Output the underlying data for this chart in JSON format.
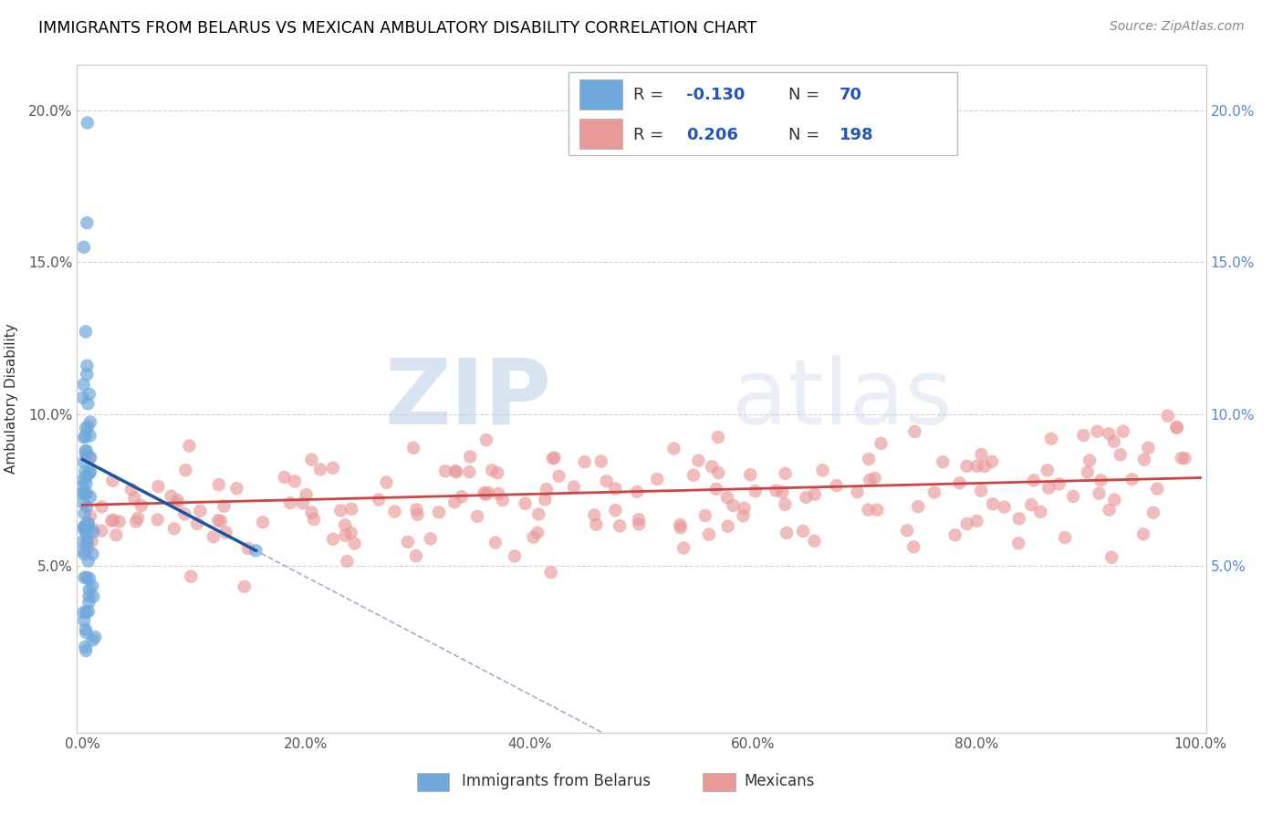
{
  "title": "IMMIGRANTS FROM BELARUS VS MEXICAN AMBULATORY DISABILITY CORRELATION CHART",
  "source": "Source: ZipAtlas.com",
  "ylabel": "Ambulatory Disability",
  "xlim": [
    -0.005,
    1.005
  ],
  "ylim": [
    -0.005,
    0.215
  ],
  "xticks": [
    0.0,
    0.2,
    0.4,
    0.6,
    0.8,
    1.0
  ],
  "yticks": [
    0.05,
    0.1,
    0.15,
    0.2
  ],
  "ytick_labels": [
    "5.0%",
    "10.0%",
    "15.0%",
    "20.0%"
  ],
  "xtick_labels": [
    "0.0%",
    "20.0%",
    "40.0%",
    "60.0%",
    "80.0%",
    "100.0%"
  ],
  "blue_R": -0.13,
  "blue_N": 70,
  "pink_R": 0.206,
  "pink_N": 198,
  "blue_color": "#6fa8dc",
  "pink_color": "#ea9999",
  "blue_line_color": "#1a56a0",
  "pink_line_color": "#cc4444",
  "dashed_line_color": "#aaaacc",
  "legend_label_blue": "Immigrants from Belarus",
  "legend_label_pink": "Mexicans",
  "watermark_zip": "ZIP",
  "watermark_atlas": "atlas",
  "background_color": "#ffffff",
  "grid_color": "#cccccc",
  "title_color": "#000000",
  "source_color": "#888888",
  "legend_text_color": "#2255bb"
}
